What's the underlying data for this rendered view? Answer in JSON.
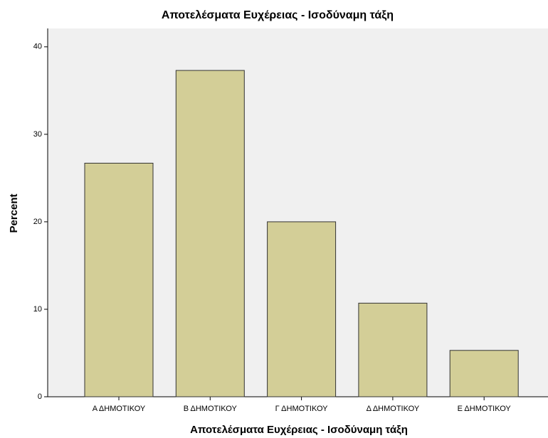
{
  "chart_data": {
    "type": "bar",
    "title": "Αποτελέσματα Ευχέρειας - Ισοδύναμη τάξη",
    "x_label": "Αποτελέσματα Ευχέρειας - Ισοδύναμη τάξη",
    "y_label": "Percent",
    "categories": [
      "Α ΔΗΜΟΤΙΚΟΥ",
      "Β ΔΗΜΟΤΙΚΟΥ",
      "Γ ΔΗΜΟΤΙΚΟΥ",
      "Δ ΔΗΜΟΤΙΚΟΥ",
      "Ε ΔΗΜΟΤΙΚΟΥ"
    ],
    "values": [
      26.7,
      37.3,
      20.0,
      10.7,
      5.3
    ],
    "color": "#d3ce97",
    "ylim": [
      0,
      42.1
    ],
    "yticks": [
      0,
      10,
      20,
      30,
      40
    ]
  }
}
